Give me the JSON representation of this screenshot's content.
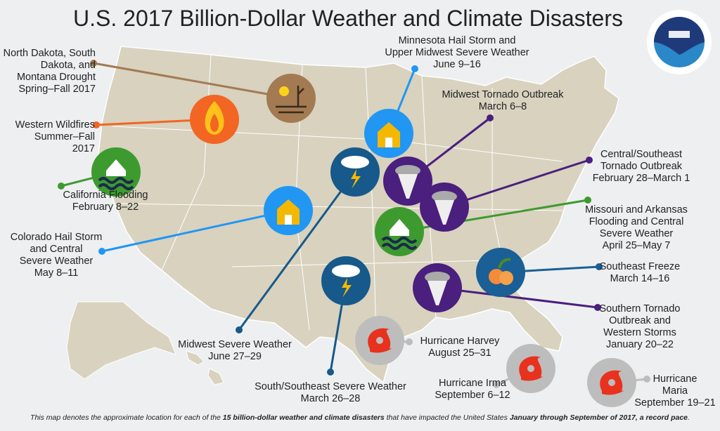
{
  "title": "U.S. 2017 Billion-Dollar Weather and Climate Disasters",
  "logo": {
    "text": "NOARA",
    "ring_text": "NATIONAL OCEANIC AND ATMOSPHERIC ADMINISTRATION · U.S. DEPARTMENT OF COMMERCE"
  },
  "colors": {
    "background": "#eeeff1",
    "land": "#d8d2bf",
    "border": "#ffffff",
    "drought": "#a37a52",
    "wildfire": "#f26522",
    "flood": "#3d9a2f",
    "hail": "#2196f3",
    "tornado": "#4a1f7d",
    "severe": "#16598a",
    "hurricane": "#bdbdbd",
    "freeze": "#1a5f95"
  },
  "events": [
    {
      "id": "nd-drought",
      "type": "drought",
      "lines": [
        "North Dakota, South",
        "Dakota, and",
        "Montana Drought",
        "Spring–Fall 2017"
      ]
    },
    {
      "id": "western-wildfires",
      "type": "wildfire",
      "lines": [
        "Western Wildfires",
        "Summer–Fall",
        "2017"
      ]
    },
    {
      "id": "california-flooding",
      "type": "flood",
      "lines": [
        "California Flooding",
        "February 8–22"
      ]
    },
    {
      "id": "colorado-hail",
      "type": "hail",
      "lines": [
        "Colorado Hail Storm",
        "and Central",
        "Severe Weather",
        "May 8–11"
      ]
    },
    {
      "id": "minnesota-hail",
      "type": "hail",
      "lines": [
        "Minnesota Hail Storm and",
        "Upper Midwest Severe Weather",
        "June 9–16"
      ]
    },
    {
      "id": "midwest-tornado",
      "type": "tornado",
      "lines": [
        "Midwest Tornado Outbreak",
        "March 6–8"
      ]
    },
    {
      "id": "central-se-tornado",
      "type": "tornado",
      "lines": [
        "Central/Southeast",
        "Tornado Outbreak",
        "February 28–March 1"
      ]
    },
    {
      "id": "midwest-severe",
      "type": "severe",
      "lines": [
        "Midwest Severe Weather",
        "June 27–29"
      ]
    },
    {
      "id": "missouri-flooding",
      "type": "flood",
      "lines": [
        "Missouri and Arkansas",
        "Flooding and Central",
        "Severe Weather",
        "April 25–May 7"
      ]
    },
    {
      "id": "se-freeze",
      "type": "freeze",
      "lines": [
        "Southeast Freeze",
        "March 14–16"
      ]
    },
    {
      "id": "southern-tornado",
      "type": "tornado",
      "lines": [
        "Southern Tornado",
        "Outbreak and",
        "Western Storms",
        "January 20–22"
      ]
    },
    {
      "id": "south-se-severe",
      "type": "severe",
      "lines": [
        "South/Southeast Severe Weather",
        "March 26–28"
      ]
    },
    {
      "id": "harvey",
      "type": "hurricane",
      "lines": [
        "Hurricane Harvey",
        "August 25–31"
      ]
    },
    {
      "id": "irma",
      "type": "hurricane",
      "lines": [
        "Hurricane Irma",
        "September 6–12"
      ]
    },
    {
      "id": "maria",
      "type": "hurricane",
      "lines": [
        "Hurricane",
        "Maria",
        "September 19–21"
      ]
    }
  ],
  "footer": {
    "part1": "This map denotes the approximate location for each of the ",
    "bold1": "15 billion-dollar weather and climate disasters",
    "part2": " that have impacted the United States ",
    "bold2": "January through September of 2017, a record pace",
    "part3": "."
  }
}
